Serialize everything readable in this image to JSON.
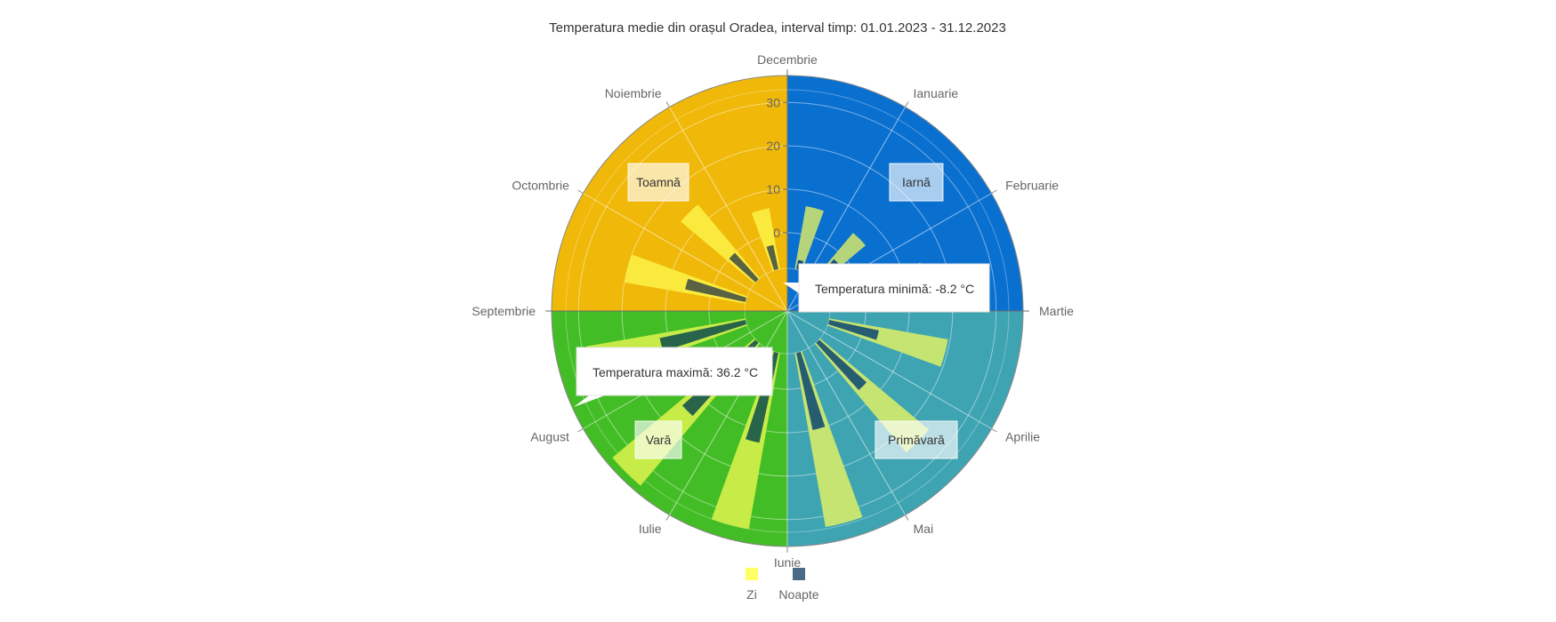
{
  "chart_data": {
    "type": "polar-bar",
    "title": "Temperatura medie din orașul Oradea, interval timp: 01.01.2023 - 31.12.2023",
    "categories": [
      "Ianuarie",
      "Februarie",
      "Martie",
      "Aprilie",
      "Mai",
      "Iunie",
      "Iulie",
      "August",
      "Septembrie",
      "Octombrie",
      "Noiembrie",
      "Decembrie"
    ],
    "radial_ticks": [
      0,
      10,
      20,
      30
    ],
    "rlim": [
      -8.2,
      36.2
    ],
    "series": [
      {
        "name": "Zi",
        "color": "#ffff55",
        "values": [
          6.5,
          5.5,
          14.5,
          19.5,
          24.5,
          32.5,
          33.0,
          34.5,
          29.0,
          20.0,
          14.0,
          6.0
        ]
      },
      {
        "name": "Noapte",
        "color": "#1e4258",
        "values": [
          -6.0,
          -2.0,
          -1.0,
          3.5,
          6.5,
          10.0,
          13.0,
          14.5,
          12.0,
          6.0,
          0.0,
          -2.5
        ]
      }
    ],
    "seasons": [
      {
        "label": "Iarnă",
        "color": "#0a70d0"
      },
      {
        "label": "Primăvară",
        "color": "#3ea4b2"
      },
      {
        "label": "Vară",
        "color": "#43bd25"
      },
      {
        "label": "Toamnă",
        "color": "#f0b808"
      }
    ],
    "annotations": [
      {
        "text": "Temperatura minimă: -8.2 °C"
      },
      {
        "text": "Temperatura maximă: 36.2 °C"
      }
    ],
    "legend": {
      "position": "bottom",
      "items": [
        "Zi",
        "Noapte"
      ]
    },
    "grid": true
  }
}
